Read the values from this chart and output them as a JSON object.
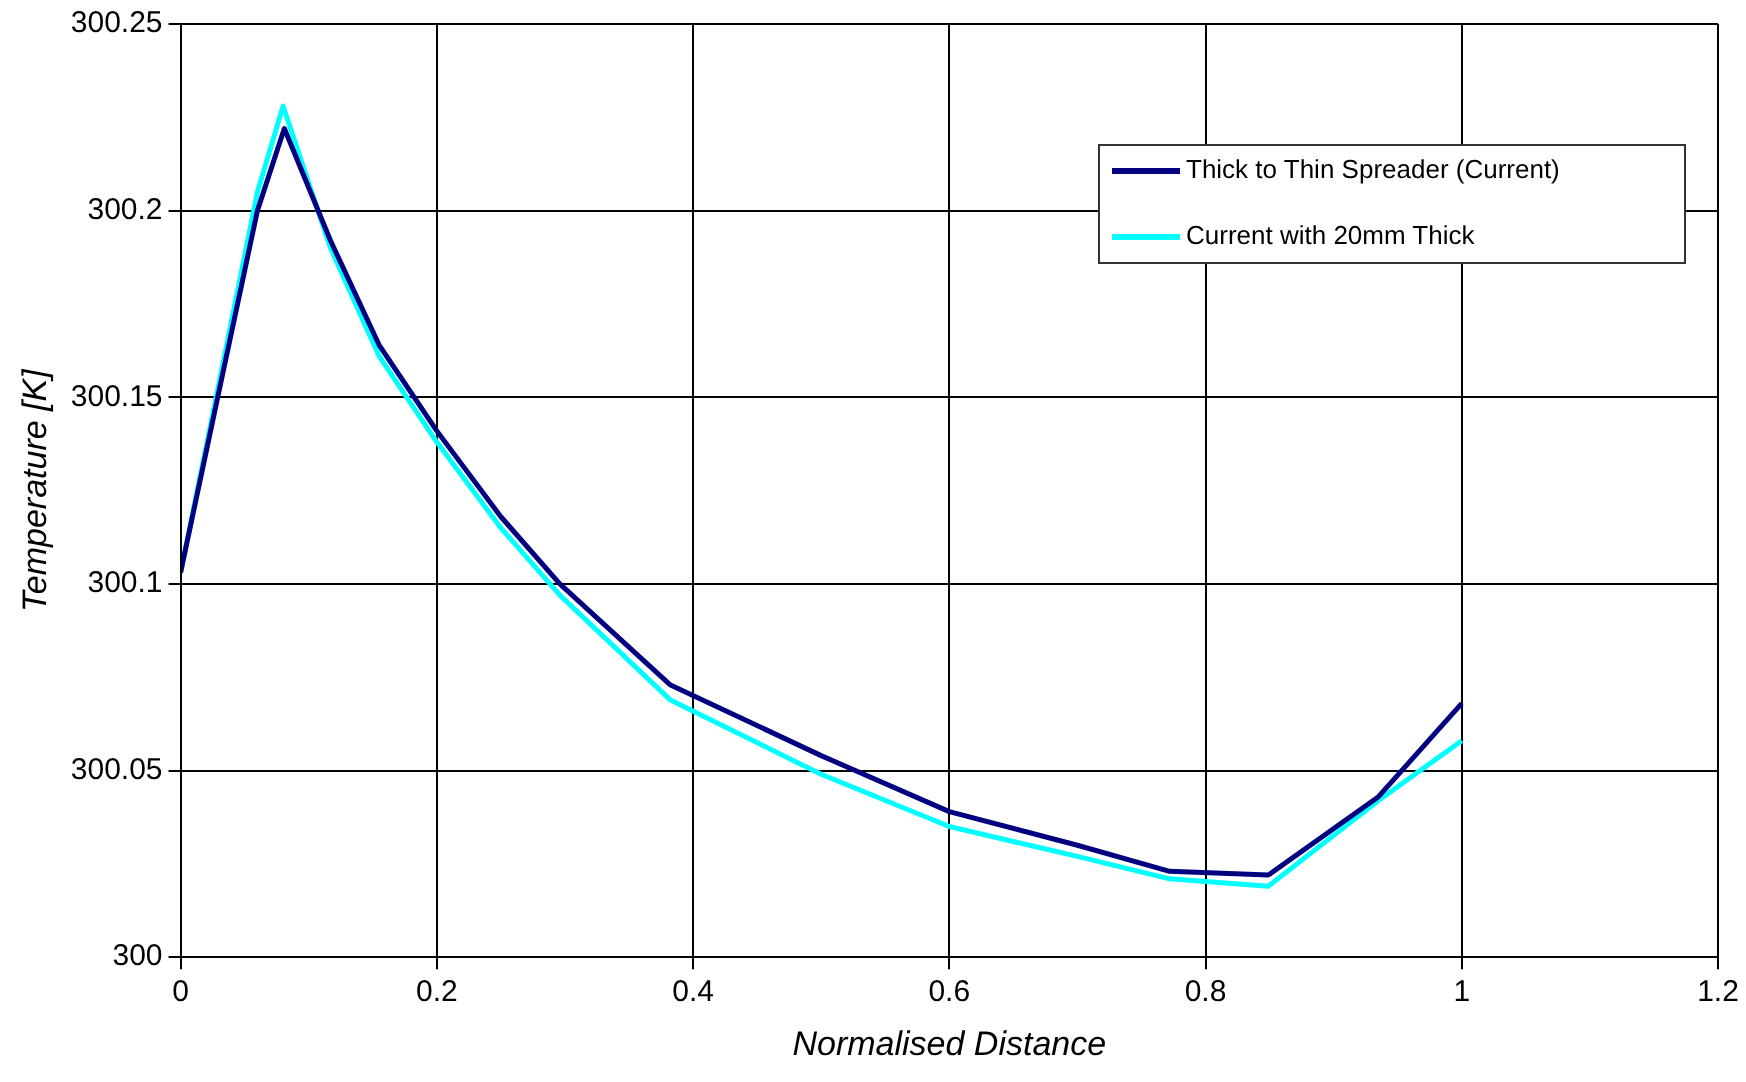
{
  "chart_data": {
    "type": "line",
    "xlabel": "Normalised Distance",
    "ylabel": "Temperature [K]",
    "xlim": [
      0,
      1.2
    ],
    "xticks": [
      0,
      0.2,
      0.4,
      0.6,
      0.8,
      1,
      1.2
    ],
    "ylim": [
      300,
      300.25
    ],
    "yticks": [
      300,
      300.05,
      300.1,
      300.15,
      300.2,
      300.25
    ],
    "grid": true,
    "legend": "top right",
    "marker": "none",
    "line_style": "solid",
    "series": [
      {
        "name": "Thick to Thin Spreader (Current)",
        "color": "#000080",
        "x": [
          0,
          0.029,
          0.06,
          0.081,
          0.117,
          0.155,
          0.2,
          0.25,
          0.296,
          0.382,
          0.5,
          0.6,
          0.7,
          0.772,
          0.849,
          0.935,
          1
        ],
        "values": [
          300.103,
          300.15,
          300.2,
          300.222,
          300.192,
          300.164,
          300.141,
          300.118,
          300.1,
          300.073,
          300.054,
          300.039,
          300.03,
          300.023,
          300.022,
          300.043,
          300.068
        ]
      },
      {
        "name": "Current with 20mm Thick",
        "color": "#00ffff",
        "x": [
          0,
          0.029,
          0.06,
          0.08,
          0.117,
          0.155,
          0.2,
          0.25,
          0.296,
          0.382,
          0.5,
          0.6,
          0.7,
          0.772,
          0.849,
          0.935,
          1
        ],
        "values": [
          300.103,
          300.152,
          300.205,
          300.228,
          300.19,
          300.161,
          300.138,
          300.115,
          300.097,
          300.069,
          300.049,
          300.035,
          300.027,
          300.021,
          300.019,
          300.042,
          300.058
        ]
      }
    ]
  }
}
